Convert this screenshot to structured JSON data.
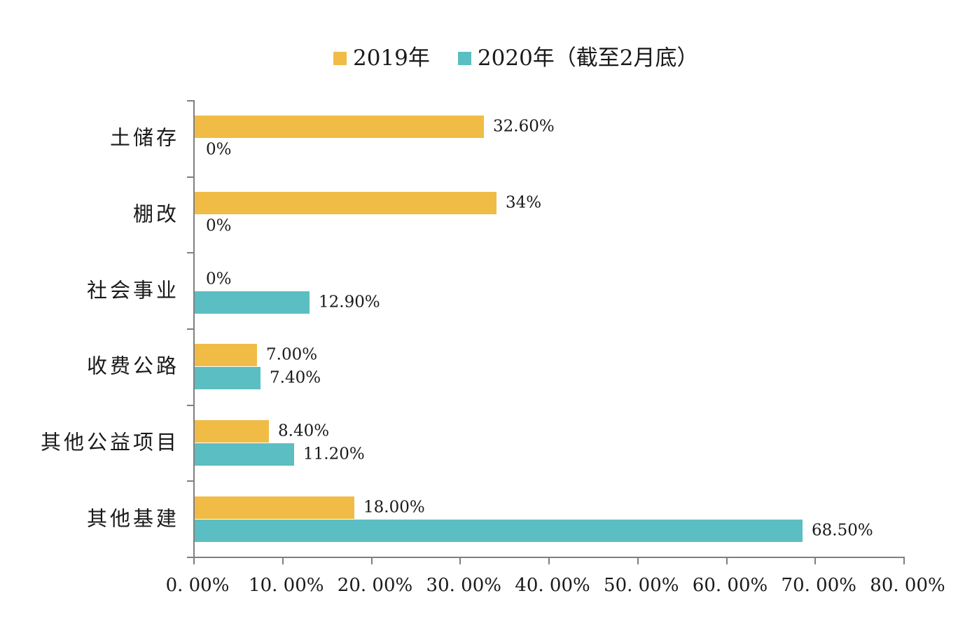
{
  "chart_data": {
    "type": "bar",
    "orientation": "horizontal",
    "title": "",
    "categories": [
      "土储存",
      "棚改",
      "社会事业",
      "收费公路",
      "其他公益项目",
      "其他基建"
    ],
    "series": [
      {
        "name": "2019年",
        "color": "#F0BC45",
        "values": [
          32.6,
          34,
          0,
          7.0,
          8.4,
          18.0
        ],
        "labels": [
          "32.60%",
          "34%",
          "0%",
          "7.00%",
          "8.40%",
          "18.00%"
        ]
      },
      {
        "name": "2020年（截至2月底）",
        "color": "#5ABEC3",
        "values": [
          0,
          0,
          12.9,
          7.4,
          11.2,
          68.5
        ],
        "labels": [
          "0%",
          "0%",
          "12.90%",
          "7.40%",
          "11.20%",
          "68.50%"
        ]
      }
    ],
    "xlim": [
      0,
      80
    ],
    "x_tick_labels": [
      "0. 00%",
      "10. 00%",
      "20. 00%",
      "30. 00%",
      "40. 00%",
      "50. 00%",
      "60. 00%",
      "70. 00%",
      "80. 00%"
    ],
    "grid": false,
    "legend_position": "top",
    "axis_color": "#7F7F7F",
    "text_color": "#1A1A1A",
    "background_color": "#FFFFFF"
  }
}
